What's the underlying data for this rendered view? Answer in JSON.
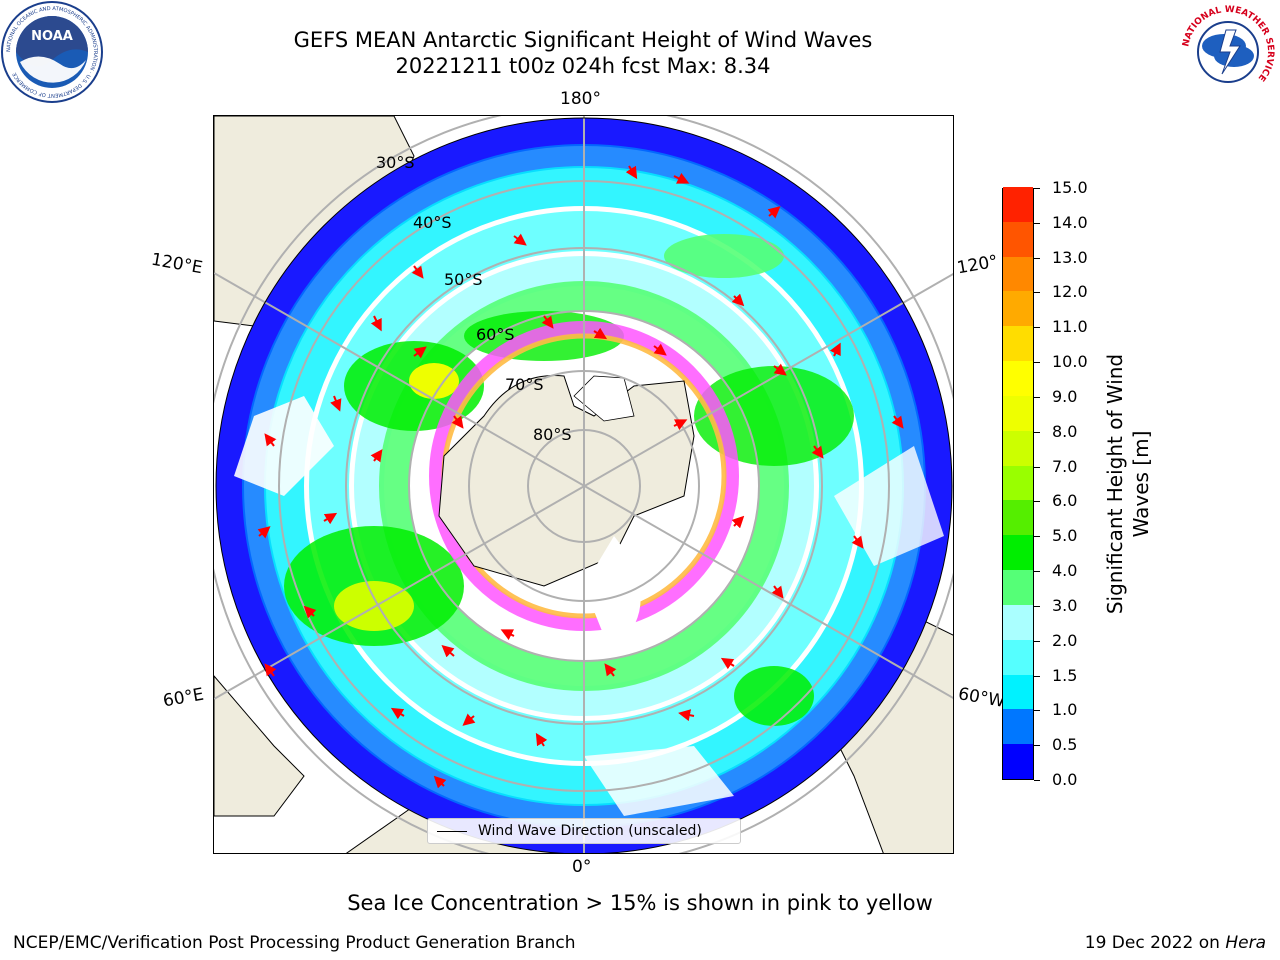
{
  "header": {
    "title_line1": "GEFS MEAN Antarctic Significant Height of Wind Waves",
    "title_line2": "20221211 t00z 024h fcst   Max: 8.34"
  },
  "logos": {
    "left": "noaa-logo",
    "right": "national-weather-service-logo",
    "left_text": "NOAA",
    "left_ring_text": "NATIONAL OCEANIC AND ATMOSPHERIC ADMINISTRATION · U.S. DEPARTMENT OF COMMERCE",
    "right_ring_text": "NATIONAL WEATHER SERVICE"
  },
  "map": {
    "projection": "south-polar-stereographic",
    "lon_labels": {
      "top": "180°",
      "bottom": "0°",
      "upper_left": "120°E",
      "lower_left": "60°E",
      "upper_right": "120°",
      "lower_right": "60°W"
    },
    "lat_labels": [
      "30°S",
      "40°S",
      "50°S",
      "60°S",
      "70°S",
      "80°S"
    ],
    "colors": {
      "land": "#efecdd",
      "ocean_none": "#ffffff",
      "grid": "#b0b0b0",
      "arrow": "#ff0000",
      "sea_ice_low": "#ff55ff",
      "sea_ice_high": "#ffbb44"
    }
  },
  "legend": {
    "label": "Wind Wave Direction (unscaled)"
  },
  "colorbar": {
    "title_line1": "Significant Height of Wind",
    "title_line2": "Waves [m]",
    "levels": [
      0.0,
      0.5,
      1.0,
      1.5,
      2.0,
      3.0,
      4.0,
      5.0,
      6.0,
      7.0,
      8.0,
      9.0,
      10.0,
      11.0,
      12.0,
      13.0,
      14.0,
      15.0
    ],
    "tick_labels": [
      "0.0",
      "0.5",
      "1.0",
      "1.5",
      "2.0",
      "3.0",
      "4.0",
      "5.0",
      "6.0",
      "7.0",
      "8.0",
      "9.0",
      "10.0",
      "11.0",
      "12.0",
      "13.0",
      "14.0",
      "15.0"
    ],
    "colors": [
      "#0000ff",
      "#0077ff",
      "#00f2ff",
      "#55ffff",
      "#aaffff",
      "#55ff77",
      "#00ee00",
      "#55ee00",
      "#99ff00",
      "#ccff00",
      "#eeff00",
      "#ffff00",
      "#ffdd00",
      "#ffaa00",
      "#ff8800",
      "#ff5500",
      "#ff2200"
    ]
  },
  "footer": {
    "subtitle": "Sea Ice Concentration > 15% is shown in pink to yellow",
    "left": "NCEP/EMC/Verification Post Processing Product Generation Branch",
    "right_date": "19 Dec 2022 on ",
    "right_machine": "Hera"
  }
}
